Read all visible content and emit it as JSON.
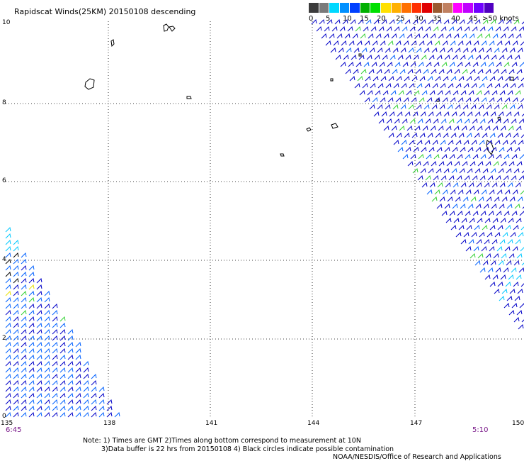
{
  "title": "Rapidscat Winds(25KM) 20150108 descending",
  "scale": {
    "labels": [
      "0",
      "5",
      "10",
      "15",
      "20",
      "25",
      "30",
      "35",
      "40",
      "45",
      ">50 knots"
    ],
    "colors": [
      "#3c3c3c",
      "#7a7a7a",
      "#00d8ff",
      "#0090ff",
      "#0040ff",
      "#00b000",
      "#00e000",
      "#ffe000",
      "#ffb000",
      "#ff7000",
      "#ff3000",
      "#e00000",
      "#9a5a30",
      "#c08060",
      "#ff00ff",
      "#c000ff",
      "#7000ff",
      "#5000c0"
    ]
  },
  "axes": {
    "lat_labels": [
      "10",
      "8",
      "6",
      "4",
      "2",
      "0"
    ],
    "lon_labels": [
      "135",
      "138",
      "141",
      "144",
      "147",
      "150"
    ]
  },
  "times": {
    "left": "6:45",
    "right": "5:10"
  },
  "notes": {
    "line1": "Note: 1) Times are GMT 2)Times along bottom correspond to measurement at 10N",
    "line2": "3)Data buffer is 22 hrs from 20150108 4) Black circles indicate possible contamination",
    "line3": "NOAA/NESDIS/Office of Research and Applications"
  },
  "wind_colors": {
    "dark_blue": "#0000c8",
    "blue": "#0060ff",
    "cyan": "#00c8ff",
    "green": "#30d030",
    "yellow": "#e8e000",
    "black": "#000000"
  }
}
